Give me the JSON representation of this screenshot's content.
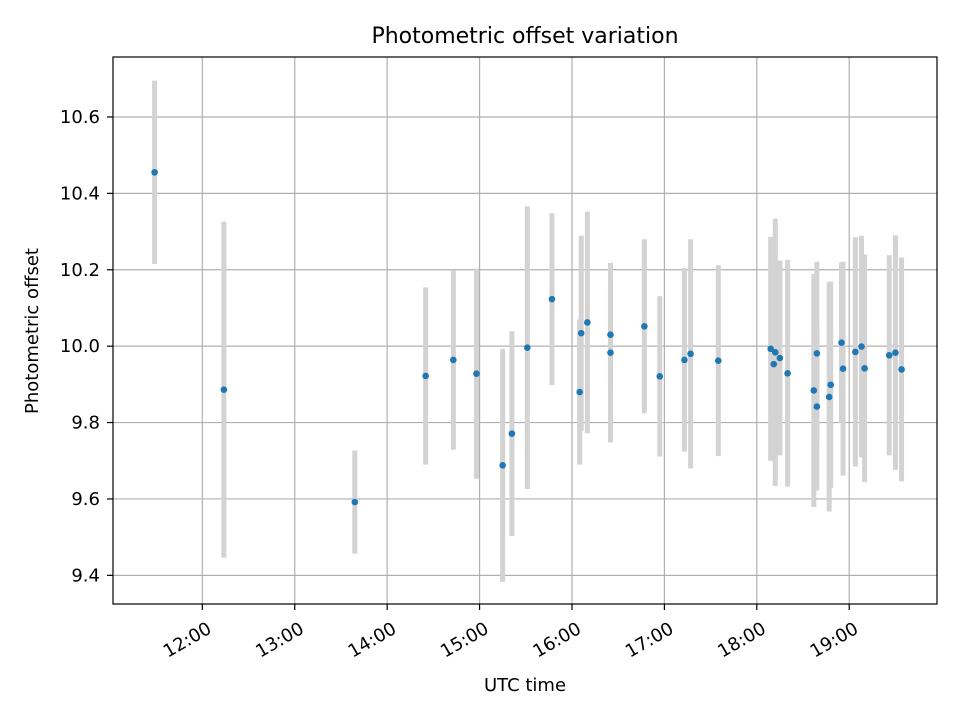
{
  "chart_data": {
    "type": "scatter",
    "title": "Photometric offset variation",
    "xlabel": "UTC time",
    "ylabel": "Photometric offset",
    "x_unit": "UTC",
    "xlim": [
      "11:02",
      "19:57"
    ],
    "ylim": [
      9.325,
      10.757
    ],
    "x_ticks": [
      "12:00",
      "13:00",
      "14:00",
      "15:00",
      "16:00",
      "17:00",
      "18:00",
      "19:00"
    ],
    "y_ticks": [
      "9.4",
      "9.6",
      "9.8",
      "10.0",
      "10.2",
      "10.4",
      "10.6"
    ],
    "grid": true,
    "legend": "none",
    "marker_color": "#1f77b4",
    "errorbar_color": "#d3d3d3",
    "x": [
      "11:29",
      "12:14",
      "13:39",
      "14:25",
      "14:43",
      "14:58",
      "15:15",
      "15:21",
      "15:31",
      "15:47",
      "16:05",
      "16:06",
      "16:10",
      "16:25",
      "16:25",
      "16:47",
      "16:57",
      "17:13",
      "17:17",
      "17:35",
      "18:09",
      "18:11",
      "18:12",
      "18:15",
      "18:20",
      "18:37",
      "18:39",
      "18:39",
      "18:47",
      "18:48",
      "18:55",
      "18:56",
      "19:04",
      "19:08",
      "19:10",
      "19:26",
      "19:30",
      "19:34"
    ],
    "y": [
      10.455,
      9.886,
      9.592,
      9.922,
      9.964,
      9.928,
      9.688,
      9.771,
      9.996,
      10.123,
      9.88,
      10.034,
      10.062,
      10.03,
      9.983,
      10.052,
      9.921,
      9.964,
      9.98,
      9.962,
      9.993,
      9.953,
      9.984,
      9.969,
      9.929,
      9.884,
      9.842,
      9.981,
      9.867,
      9.899,
      10.009,
      9.941,
      9.985,
      9.999,
      9.942,
      9.976,
      9.983,
      9.939
    ],
    "yerr": [
      0.24,
      0.44,
      0.135,
      0.232,
      0.235,
      0.275,
      0.305,
      0.268,
      0.37,
      0.225,
      0.19,
      0.255,
      0.29,
      0.135,
      0.235,
      0.228,
      0.21,
      0.24,
      0.3,
      0.25,
      0.293,
      0.25,
      0.35,
      0.255,
      0.297,
      0.305,
      0.22,
      0.24,
      0.3,
      0.27,
      0.21,
      0.28,
      0.3,
      0.29,
      0.298,
      0.262,
      0.307,
      0.293
    ]
  }
}
